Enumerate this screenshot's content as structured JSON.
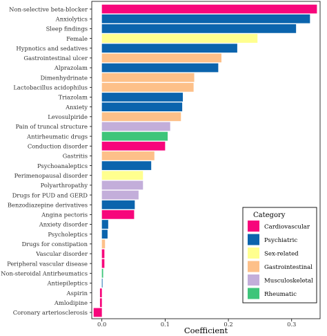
{
  "chart_data": {
    "type": "bar",
    "orientation": "horizontal",
    "xlabel": "Coefficient",
    "ylabel": "",
    "xlim": [
      -0.016,
      0.345
    ],
    "xticks": [
      0.0,
      0.1,
      0.2,
      0.3
    ],
    "xtick_labels": [
      "0.0",
      "0.1",
      "0.2",
      "0.3"
    ],
    "grid": false,
    "legend": {
      "title": "Category",
      "placement": "bottom-right",
      "entries": [
        {
          "name": "Cardiovascular",
          "color": "#F7067B"
        },
        {
          "name": "Psychiatric",
          "color": "#0B64AD"
        },
        {
          "name": "Sex-related",
          "color": "#FFFF8F"
        },
        {
          "name": "Gastrointestinal",
          "color": "#FDC089"
        },
        {
          "name": "Musculoskeletal",
          "color": "#C3AEDA"
        },
        {
          "name": "Rheumatic",
          "color": "#3EC57A"
        }
      ]
    },
    "bars": [
      {
        "label": "Non-selective beta-blocker",
        "value": 0.34,
        "category": "Cardiovascular"
      },
      {
        "label": "Anxiolytics",
        "value": 0.329,
        "category": "Psychiatric"
      },
      {
        "label": "Sleep findings",
        "value": 0.307,
        "category": "Psychiatric"
      },
      {
        "label": "Female",
        "value": 0.246,
        "category": "Sex-related"
      },
      {
        "label": "Hypnotics and sedatives",
        "value": 0.214,
        "category": "Psychiatric"
      },
      {
        "label": "Gastrointestinal ulcer",
        "value": 0.189,
        "category": "Gastrointestinal"
      },
      {
        "label": "Alprazolam",
        "value": 0.184,
        "category": "Psychiatric"
      },
      {
        "label": "Dimenhydrinate",
        "value": 0.146,
        "category": "Gastrointestinal"
      },
      {
        "label": "Lactobacillus acidophilus",
        "value": 0.145,
        "category": "Gastrointestinal"
      },
      {
        "label": "Triazolam",
        "value": 0.128,
        "category": "Psychiatric"
      },
      {
        "label": "Anxiety",
        "value": 0.127,
        "category": "Psychiatric"
      },
      {
        "label": "Levosulpiride",
        "value": 0.125,
        "category": "Gastrointestinal"
      },
      {
        "label": "Pain of truncal structure",
        "value": 0.108,
        "category": "Musculoskeletal"
      },
      {
        "label": "Antirheumatic drugs",
        "value": 0.104,
        "category": "Rheumatic"
      },
      {
        "label": "Conduction disorder",
        "value": 0.1,
        "category": "Cardiovascular"
      },
      {
        "label": "Gastritis",
        "value": 0.083,
        "category": "Gastrointestinal"
      },
      {
        "label": "Psychoanaleptics",
        "value": 0.078,
        "category": "Psychiatric"
      },
      {
        "label": "Perimenopausal disorder",
        "value": 0.065,
        "category": "Sex-related"
      },
      {
        "label": "Polyarthropathy",
        "value": 0.065,
        "category": "Musculoskeletal"
      },
      {
        "label": "Drugs for PUD and GERD",
        "value": 0.058,
        "category": "Musculoskeletal"
      },
      {
        "label": "Benzodiazepine derivatives",
        "value": 0.052,
        "category": "Psychiatric"
      },
      {
        "label": "Angina pectoris",
        "value": 0.051,
        "category": "Cardiovascular"
      },
      {
        "label": "Anxiety disorder",
        "value": 0.01,
        "category": "Psychiatric"
      },
      {
        "label": "Psycholeptics",
        "value": 0.009,
        "category": "Psychiatric"
      },
      {
        "label": "Drugs for constipation",
        "value": 0.005,
        "category": "Gastrointestinal"
      },
      {
        "label": "Vascular disorder",
        "value": 0.004,
        "category": "Cardiovascular"
      },
      {
        "label": "Peripheral vascular disease",
        "value": 0.004,
        "category": "Cardiovascular"
      },
      {
        "label": "Non-steroidal Antirheumatics",
        "value": 0.002,
        "category": "Rheumatic"
      },
      {
        "label": "Antiepileptics",
        "value": 0.001,
        "category": "Psychiatric"
      },
      {
        "label": "Aspirin",
        "value": -0.003,
        "category": "Cardiovascular"
      },
      {
        "label": "Amlodipine",
        "value": -0.003,
        "category": "Cardiovascular"
      },
      {
        "label": "Coronary arteriosclerosis",
        "value": -0.013,
        "category": "Cardiovascular"
      }
    ]
  }
}
